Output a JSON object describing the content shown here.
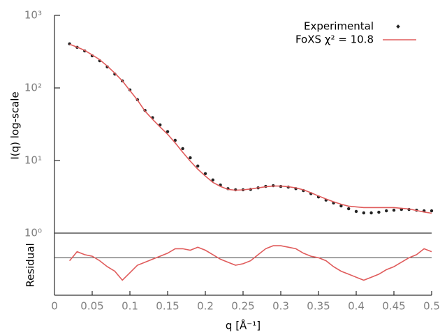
{
  "chart_data": [
    {
      "type": "line",
      "ylabel": "I(q) log-scale",
      "log_scale": true,
      "xlim": [
        0,
        0.5
      ],
      "ylim": [
        1,
        1000
      ],
      "yticks": [
        {
          "value": 1,
          "label": "10⁰"
        },
        {
          "value": 10,
          "label": "10¹"
        },
        {
          "value": 100,
          "label": "10²"
        },
        {
          "value": 1000,
          "label": "10³"
        }
      ],
      "legend": "top-right",
      "x": [
        0.02,
        0.03,
        0.04,
        0.05,
        0.06,
        0.07,
        0.08,
        0.09,
        0.1,
        0.11,
        0.12,
        0.13,
        0.14,
        0.15,
        0.16,
        0.17,
        0.18,
        0.19,
        0.2,
        0.21,
        0.22,
        0.23,
        0.24,
        0.25,
        0.26,
        0.27,
        0.28,
        0.29,
        0.3,
        0.31,
        0.32,
        0.33,
        0.34,
        0.35,
        0.36,
        0.37,
        0.38,
        0.39,
        0.4,
        0.41,
        0.42,
        0.43,
        0.44,
        0.45,
        0.46,
        0.47,
        0.48,
        0.49,
        0.5
      ],
      "series": [
        {
          "name": "Experimental",
          "color": "#222222",
          "marker": "points",
          "values": [
            405,
            363,
            324,
            277,
            237,
            195,
            155,
            125,
            94,
            69,
            49,
            39,
            31,
            25,
            19,
            14.6,
            10.9,
            8.4,
            6.6,
            5.4,
            4.6,
            4.1,
            3.95,
            3.95,
            4.0,
            4.2,
            4.4,
            4.5,
            4.4,
            4.3,
            4.1,
            3.85,
            3.5,
            3.15,
            2.85,
            2.6,
            2.37,
            2.17,
            1.99,
            1.9,
            1.9,
            1.94,
            2.03,
            2.07,
            2.12,
            2.12,
            2.07,
            2.03,
            2.03
          ]
        },
        {
          "name": "FoXS χ² = 10.8",
          "color": "#e05c5c",
          "marker": "line",
          "values": [
            400,
            365,
            330,
            285,
            245,
            200,
            160,
            125,
            92,
            68,
            48,
            37,
            29,
            23,
            17.5,
            13,
            9.8,
            7.6,
            6.1,
            5.0,
            4.4,
            4.0,
            3.9,
            3.95,
            4.05,
            4.2,
            4.35,
            4.45,
            4.45,
            4.35,
            4.2,
            3.95,
            3.6,
            3.25,
            2.95,
            2.7,
            2.5,
            2.35,
            2.3,
            2.25,
            2.25,
            2.25,
            2.25,
            2.25,
            2.2,
            2.15,
            2.05,
            1.95,
            1.88
          ]
        }
      ]
    },
    {
      "type": "line",
      "ylabel": "Residual",
      "xlabel": "q [Å⁻¹]",
      "xlim": [
        0,
        0.5
      ],
      "xticks": [
        0,
        0.05,
        0.1,
        0.15,
        0.2,
        0.25,
        0.3,
        0.35,
        0.4,
        0.45,
        0.5
      ],
      "ylim": [
        -2.5,
        1.5
      ],
      "color": "#e05c5c",
      "x": [
        0.02,
        0.03,
        0.04,
        0.05,
        0.06,
        0.07,
        0.08,
        0.09,
        0.1,
        0.11,
        0.12,
        0.13,
        0.14,
        0.15,
        0.16,
        0.17,
        0.18,
        0.19,
        0.2,
        0.21,
        0.22,
        0.23,
        0.24,
        0.25,
        0.26,
        0.27,
        0.28,
        0.29,
        0.3,
        0.31,
        0.32,
        0.33,
        0.34,
        0.35,
        0.36,
        0.37,
        0.38,
        0.39,
        0.4,
        0.41,
        0.42,
        0.43,
        0.44,
        0.45,
        0.46,
        0.47,
        0.48,
        0.49,
        0.5
      ],
      "values": [
        -0.2,
        0.4,
        0.2,
        0.1,
        -0.2,
        -0.6,
        -0.9,
        -1.5,
        -1.0,
        -0.5,
        -0.3,
        -0.1,
        0.1,
        0.3,
        0.6,
        0.6,
        0.5,
        0.7,
        0.5,
        0.2,
        -0.1,
        -0.3,
        -0.5,
        -0.4,
        -0.2,
        0.2,
        0.6,
        0.8,
        0.8,
        0.7,
        0.6,
        0.3,
        0.1,
        0.0,
        -0.2,
        -0.6,
        -0.9,
        -1.1,
        -1.3,
        -1.5,
        -1.3,
        -1.1,
        -0.8,
        -0.6,
        -0.3,
        0.0,
        0.2,
        0.6,
        0.4
      ]
    }
  ]
}
